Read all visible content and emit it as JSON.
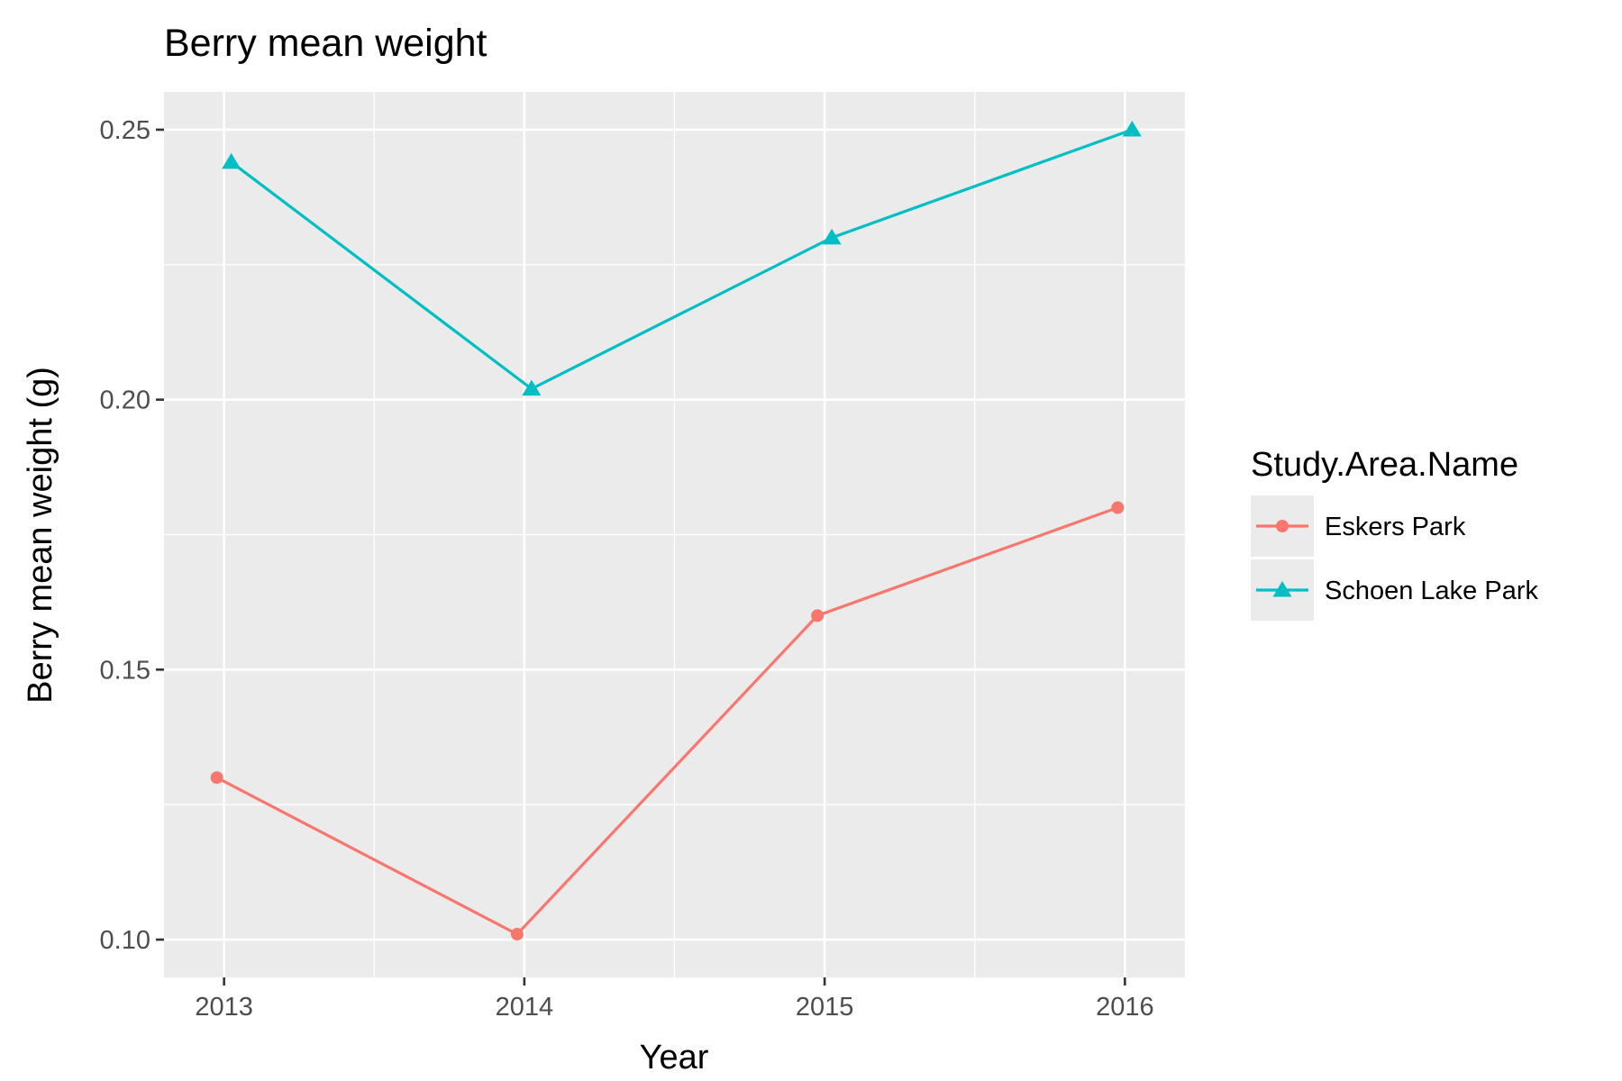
{
  "chart_data": {
    "type": "line",
    "title": "Berry mean weight",
    "xlabel": "Year",
    "ylabel": "Berry mean weight (g)",
    "x": [
      2013,
      2014,
      2015,
      2016
    ],
    "x_tick_labels": [
      "2013",
      "2014",
      "2015",
      "2016"
    ],
    "xlim": [
      2012.8,
      2016.2
    ],
    "y_ticks": [
      0.1,
      0.15,
      0.2,
      0.25
    ],
    "y_tick_labels": [
      "0.10",
      "0.15",
      "0.20",
      "0.25"
    ],
    "ylim": [
      0.093,
      0.257
    ],
    "grid": true,
    "legend_title": "Study.Area.Name",
    "legend_position": "right",
    "series": [
      {
        "name": "Eskers Park",
        "color": "#F8766D",
        "marker": "circle",
        "x": [
          2013,
          2014,
          2015,
          2016
        ],
        "values": [
          0.13,
          0.101,
          0.16,
          0.18
        ]
      },
      {
        "name": "Schoen Lake Park",
        "color": "#00BFC4",
        "marker": "triangle",
        "x": [
          2013,
          2014,
          2015,
          2016
        ],
        "values": [
          0.244,
          0.202,
          0.23,
          0.25
        ]
      }
    ]
  }
}
